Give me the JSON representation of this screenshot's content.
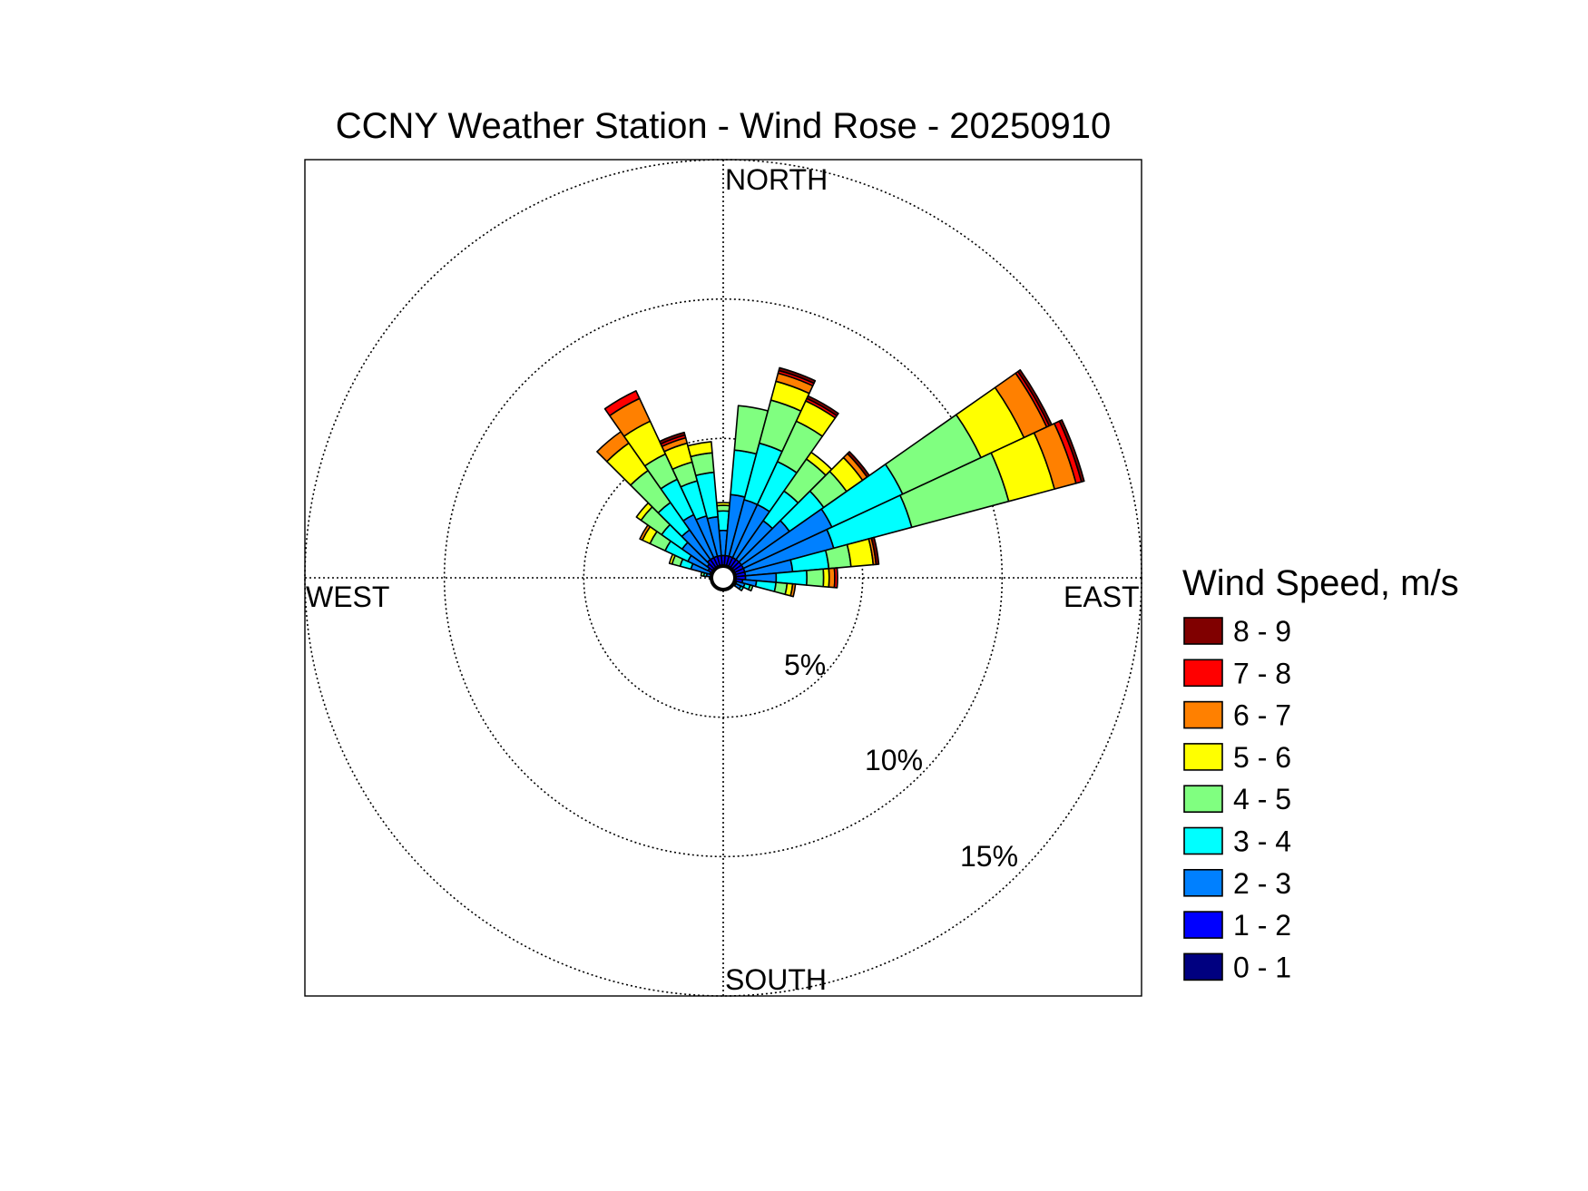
{
  "chart_data": {
    "type": "wind-rose",
    "title": "CCNY Weather Station - Wind Rose - 20250910",
    "directions": {
      "north": "NORTH",
      "south": "SOUTH",
      "east": "EAST",
      "west": "WEST"
    },
    "rings": [
      {
        "value": 5,
        "label": "5%"
      },
      {
        "value": 10,
        "label": "10%"
      },
      {
        "value": 15,
        "label": "15%"
      }
    ],
    "rmax": 15,
    "legend": {
      "title": "Wind Speed, m/s",
      "bins": [
        {
          "label": "8 - 9",
          "color": "#800000"
        },
        {
          "label": "7 - 8",
          "color": "#ff0000"
        },
        {
          "label": "6 - 7",
          "color": "#ff8000"
        },
        {
          "label": "5 - 6",
          "color": "#ffff00"
        },
        {
          "label": "4 - 5",
          "color": "#80ff80"
        },
        {
          "label": "3 - 4",
          "color": "#00ffff"
        },
        {
          "label": "2 - 3",
          "color": "#0080ff"
        },
        {
          "label": "1 - 2",
          "color": "#0000ff"
        },
        {
          "label": "0 - 1",
          "color": "#000080"
        }
      ]
    },
    "sector_width_deg": 10,
    "speed_bins_ascending": [
      "0 - 1",
      "1 - 2",
      "2 - 3",
      "3 - 4",
      "4 - 5",
      "5 - 6",
      "6 - 7",
      "7 - 8",
      "8 - 9"
    ],
    "sectors": [
      {
        "dir": 0,
        "cumulative": [
          0.2,
          0.8,
          1.7,
          2.4,
          2.6,
          2.7,
          2.7,
          2.7,
          2.7
        ]
      },
      {
        "dir": 10,
        "cumulative": [
          0.2,
          0.8,
          3.0,
          4.6,
          6.2,
          6.2,
          6.2,
          6.2,
          6.2
        ]
      },
      {
        "dir": 20,
        "cumulative": [
          0.2,
          0.8,
          2.9,
          5.0,
          6.6,
          7.3,
          7.6,
          7.7,
          7.8
        ]
      },
      {
        "dir": 30,
        "cumulative": [
          0.2,
          0.8,
          2.9,
          4.6,
          6.2,
          7.0,
          7.0,
          7.1,
          7.2
        ]
      },
      {
        "dir": 40,
        "cumulative": [
          0.2,
          0.8,
          2.5,
          3.8,
          5.2,
          5.5,
          5.5,
          5.5,
          5.5
        ]
      },
      {
        "dir": 50,
        "cumulative": [
          0.2,
          0.8,
          2.9,
          4.4,
          5.4,
          6.1,
          6.3,
          6.3,
          6.4
        ]
      },
      {
        "dir": 60,
        "cumulative": [
          0.2,
          0.8,
          4.3,
          7.1,
          10.2,
          11.9,
          12.8,
          12.9,
          13.0
        ]
      },
      {
        "dir": 70,
        "cumulative": [
          0.2,
          0.8,
          4.1,
          7.0,
          10.6,
          12.3,
          13.1,
          13.3,
          13.4
        ]
      },
      {
        "dir": 80,
        "cumulative": [
          0.2,
          0.8,
          2.5,
          3.8,
          4.6,
          5.4,
          5.5,
          5.5,
          5.6
        ]
      },
      {
        "dir": 90,
        "cumulative": [
          0.2,
          0.8,
          1.9,
          3.0,
          3.6,
          3.8,
          4.0,
          4.1,
          4.1
        ]
      },
      {
        "dir": 100,
        "cumulative": [
          0.2,
          0.7,
          1.2,
          1.9,
          2.3,
          2.5,
          2.6,
          2.6,
          2.6
        ]
      },
      {
        "dir": 110,
        "cumulative": [
          0.2,
          0.5,
          0.8,
          1.0,
          1.1,
          1.1,
          1.1,
          1.1,
          1.1
        ]
      },
      {
        "dir": 120,
        "cumulative": [
          0.2,
          0.5,
          0.7,
          0.8,
          0.8,
          0.8,
          0.8,
          0.8,
          0.8
        ]
      },
      {
        "dir": 130,
        "cumulative": [
          0.2,
          0.3,
          0.4,
          0.4,
          0.4,
          0.4,
          0.4,
          0.4,
          0.4
        ]
      },
      {
        "dir": 140,
        "cumulative": [
          0.1,
          0.2,
          0.3,
          0.3,
          0.3,
          0.3,
          0.3,
          0.3,
          0.3
        ]
      },
      {
        "dir": 150,
        "cumulative": [
          0.1,
          0.2,
          0.2,
          0.2,
          0.2,
          0.2,
          0.2,
          0.2,
          0.2
        ]
      },
      {
        "dir": 160,
        "cumulative": [
          0.1,
          0.2,
          0.2,
          0.2,
          0.2,
          0.2,
          0.2,
          0.2,
          0.2
        ]
      },
      {
        "dir": 170,
        "cumulative": [
          0.1,
          0.2,
          0.2,
          0.2,
          0.2,
          0.2,
          0.2,
          0.2,
          0.2
        ]
      },
      {
        "dir": 180,
        "cumulative": [
          0.1,
          0.2,
          0.2,
          0.2,
          0.2,
          0.2,
          0.2,
          0.2,
          0.2
        ]
      },
      {
        "dir": 190,
        "cumulative": [
          0.1,
          0.1,
          0.1,
          0.1,
          0.1,
          0.1,
          0.1,
          0.1,
          0.1
        ]
      },
      {
        "dir": 200,
        "cumulative": [
          0.1,
          0.2,
          0.2,
          0.2,
          0.2,
          0.2,
          0.2,
          0.2,
          0.2
        ]
      },
      {
        "dir": 210,
        "cumulative": [
          0.1,
          0.2,
          0.2,
          0.2,
          0.2,
          0.2,
          0.2,
          0.2,
          0.2
        ]
      },
      {
        "dir": 220,
        "cumulative": [
          0.1,
          0.2,
          0.2,
          0.2,
          0.2,
          0.2,
          0.2,
          0.2,
          0.2
        ]
      },
      {
        "dir": 230,
        "cumulative": [
          0.1,
          0.2,
          0.2,
          0.2,
          0.2,
          0.2,
          0.2,
          0.2,
          0.2
        ]
      },
      {
        "dir": 240,
        "cumulative": [
          0.1,
          0.2,
          0.3,
          0.3,
          0.3,
          0.3,
          0.3,
          0.3,
          0.3
        ]
      },
      {
        "dir": 250,
        "cumulative": [
          0.1,
          0.2,
          0.3,
          0.4,
          0.4,
          0.4,
          0.4,
          0.4,
          0.4
        ]
      },
      {
        "dir": 260,
        "cumulative": [
          0.1,
          0.2,
          0.3,
          0.4,
          0.4,
          0.4,
          0.4,
          0.4,
          0.4
        ]
      },
      {
        "dir": 270,
        "cumulative": [
          0.1,
          0.2,
          0.4,
          0.5,
          0.5,
          0.5,
          0.5,
          0.5,
          0.5
        ]
      },
      {
        "dir": 280,
        "cumulative": [
          0.1,
          0.3,
          0.6,
          0.7,
          0.8,
          0.8,
          0.8,
          0.8,
          0.8
        ]
      },
      {
        "dir": 290,
        "cumulative": [
          0.1,
          0.5,
          1.2,
          1.6,
          1.9,
          2.0,
          2.0,
          2.0,
          2.0
        ]
      },
      {
        "dir": 300,
        "cumulative": [
          0.2,
          0.6,
          1.4,
          2.3,
          2.9,
          3.2,
          3.3,
          3.3,
          3.3
        ]
      },
      {
        "dir": 310,
        "cumulative": [
          0.2,
          0.7,
          1.8,
          2.7,
          3.6,
          3.8,
          3.8,
          3.8,
          3.8
        ]
      },
      {
        "dir": 320,
        "cumulative": [
          0.2,
          0.8,
          2.1,
          3.3,
          4.7,
          5.9,
          6.4,
          6.4,
          6.4
        ]
      },
      {
        "dir": 330,
        "cumulative": [
          0.2,
          0.8,
          2.5,
          3.9,
          4.9,
          6.2,
          7.1,
          7.4,
          7.4
        ]
      },
      {
        "dir": 340,
        "cumulative": [
          0.2,
          0.8,
          2.3,
          3.6,
          4.3,
          5.0,
          5.2,
          5.3,
          5.4
        ]
      },
      {
        "dir": 350,
        "cumulative": [
          0.2,
          0.8,
          2.2,
          3.8,
          4.5,
          4.9,
          4.9,
          4.9,
          4.9
        ]
      }
    ]
  }
}
